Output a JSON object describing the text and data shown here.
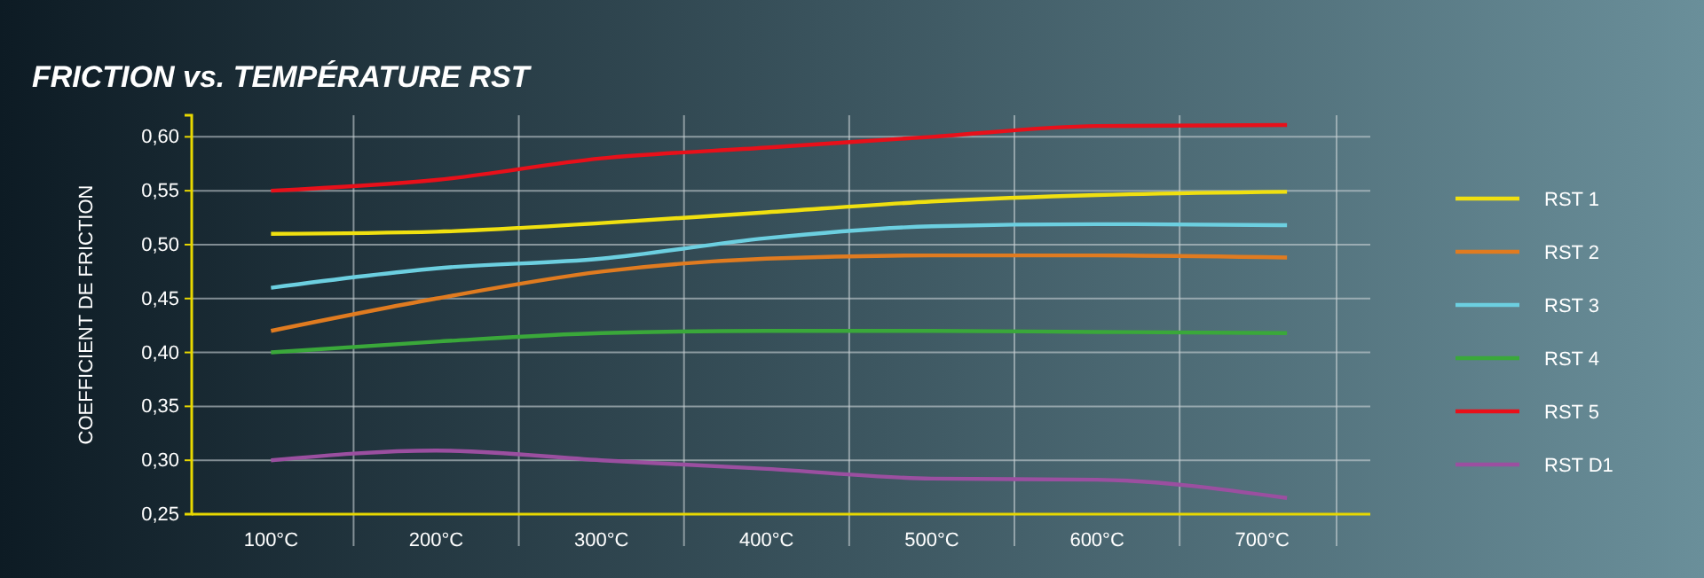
{
  "chart_data": {
    "type": "line",
    "title": "FRICTION vs. TEMPÉRATURE RST",
    "ylabel": "COEFFICIENT DE FRICTION",
    "x": [
      100,
      200,
      300,
      400,
      500,
      600,
      715
    ],
    "xlim": [
      52,
      745
    ],
    "xticks": [
      {
        "value": 100,
        "label": "100°C"
      },
      {
        "value": 150,
        "label": null
      },
      {
        "value": 200,
        "label": "200°C"
      },
      {
        "value": 250,
        "label": null
      },
      {
        "value": 300,
        "label": "300°C"
      },
      {
        "value": 350,
        "label": null
      },
      {
        "value": 400,
        "label": "400°C"
      },
      {
        "value": 450,
        "label": null
      },
      {
        "value": 500,
        "label": "500°C"
      },
      {
        "value": 550,
        "label": null
      },
      {
        "value": 600,
        "label": "600°C"
      },
      {
        "value": 650,
        "label": null
      },
      {
        "value": 700,
        "label": "700°C"
      }
    ],
    "ylim": [
      0.25,
      0.62
    ],
    "yticks": [
      {
        "value": 0.25,
        "label": "0,25"
      },
      {
        "value": 0.3,
        "label": "0,30"
      },
      {
        "value": 0.35,
        "label": "0,35"
      },
      {
        "value": 0.4,
        "label": "0,40"
      },
      {
        "value": 0.45,
        "label": "0,45"
      },
      {
        "value": 0.5,
        "label": "0,50"
      },
      {
        "value": 0.55,
        "label": "0,55"
      },
      {
        "value": 0.6,
        "label": "0,60"
      }
    ],
    "grid": true,
    "legend": "right",
    "line_style": "solid",
    "marker": "none",
    "series": [
      {
        "name": "RST 1",
        "color": "#f0e010",
        "values": [
          0.51,
          0.512,
          0.52,
          0.53,
          0.54,
          0.546,
          0.549
        ]
      },
      {
        "name": "RST 2",
        "color": "#e07b20",
        "values": [
          0.42,
          0.45,
          0.475,
          0.487,
          0.49,
          0.49,
          0.488
        ]
      },
      {
        "name": "RST 3",
        "color": "#6ccfe0",
        "values": [
          0.46,
          0.478,
          0.487,
          0.506,
          0.517,
          0.519,
          0.518
        ]
      },
      {
        "name": "RST 4",
        "color": "#3aa83a",
        "values": [
          0.4,
          0.41,
          0.418,
          0.42,
          0.42,
          0.419,
          0.418
        ]
      },
      {
        "name": "RST 5",
        "color": "#e8101a",
        "values": [
          0.55,
          0.56,
          0.58,
          0.59,
          0.6,
          0.61,
          0.611
        ]
      },
      {
        "name": "RST D1",
        "color": "#9b4fa0",
        "values": [
          0.3,
          0.309,
          0.3,
          0.292,
          0.283,
          0.282,
          0.265
        ]
      }
    ]
  }
}
